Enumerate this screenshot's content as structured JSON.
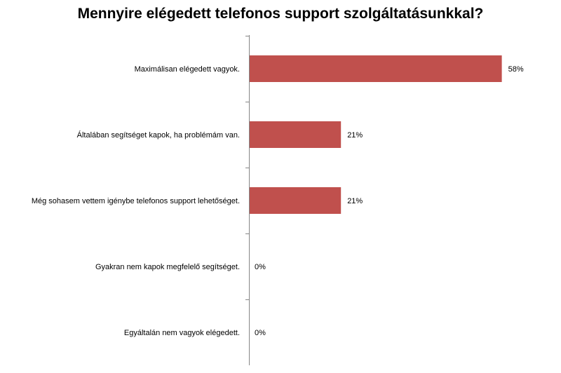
{
  "chart_data": {
    "type": "bar",
    "orientation": "horizontal",
    "title": "Mennyire elégedett telefonos support szolgáltatásunkkal?",
    "categories": [
      "Maximálisan elégedett vagyok.",
      "Általában segítséget kapok, ha problémám van.",
      "Még sohasem vettem igénybe telefonos support lehetőséget.",
      "Gyakran nem kapok megfelelő segítséget.",
      "Egyáltalán  nem vagyok elégedett."
    ],
    "values": [
      58,
      21,
      21,
      0,
      0
    ],
    "data_labels": [
      "58%",
      "21%",
      "21%",
      "0%",
      "0%"
    ],
    "unit": "%",
    "xlabel": "",
    "ylabel": "",
    "xlim": [
      0,
      100
    ],
    "grid": false,
    "legend": "none",
    "color": "#C0504D"
  }
}
